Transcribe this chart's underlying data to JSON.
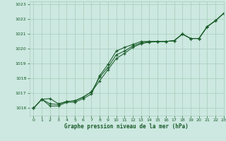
{
  "xlabel": "Graphe pression niveau de la mer (hPa)",
  "xlim": [
    -0.5,
    23
  ],
  "ylim": [
    1015.5,
    1023.2
  ],
  "yticks": [
    1016,
    1017,
    1018,
    1019,
    1020,
    1021,
    1022,
    1023
  ],
  "xticks": [
    0,
    1,
    2,
    3,
    4,
    5,
    6,
    7,
    8,
    9,
    10,
    11,
    12,
    13,
    14,
    15,
    16,
    17,
    18,
    19,
    20,
    21,
    22,
    23
  ],
  "background_color": "#cce8e0",
  "grid_color": "#aaccbb",
  "line_color": "#1a5c2a",
  "line1_y": [
    1016.0,
    1016.6,
    1016.65,
    1016.3,
    1016.45,
    1016.5,
    1016.75,
    1017.1,
    1017.85,
    1018.6,
    1019.35,
    1019.7,
    1020.1,
    1020.35,
    1020.45,
    1020.5,
    1020.5,
    1020.55,
    1021.0,
    1020.7,
    1020.7,
    1021.5,
    1021.9,
    1022.4
  ],
  "line2_y": [
    1016.0,
    1016.6,
    1016.3,
    1016.25,
    1016.45,
    1016.5,
    1016.75,
    1017.1,
    1018.1,
    1018.75,
    1019.6,
    1019.85,
    1020.2,
    1020.4,
    1020.5,
    1020.5,
    1020.5,
    1020.55,
    1021.0,
    1020.7,
    1020.7,
    1021.5,
    1021.9,
    1022.4
  ],
  "line3_y": [
    1016.0,
    1016.6,
    1016.15,
    1016.15,
    1016.4,
    1016.4,
    1016.65,
    1016.95,
    1018.2,
    1018.95,
    1019.85,
    1020.1,
    1020.3,
    1020.5,
    1020.5,
    1020.5,
    1020.5,
    1020.55,
    1021.0,
    1020.7,
    1020.7,
    1021.5,
    1021.9,
    1022.4
  ]
}
